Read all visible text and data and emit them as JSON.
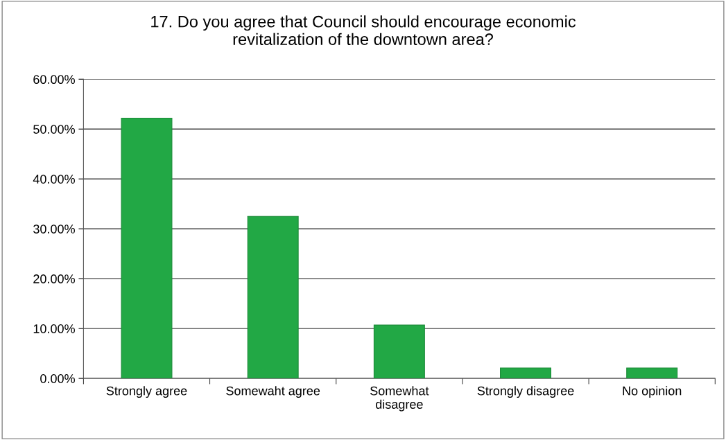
{
  "chart_data": {
    "type": "bar",
    "title": "17. Do you agree that Council should encourage economic\nrevitalization of the downtown area?",
    "categories": [
      "Strongly agree",
      "Somewaht agree",
      "Somewhat\ndisagree",
      "Strongly disagree",
      "No opinion"
    ],
    "values": [
      52.2,
      32.5,
      10.7,
      2.1,
      2.1
    ],
    "color": "#22a845",
    "ylim": [
      0,
      60
    ],
    "yticks": [
      {
        "value": 0,
        "label": "0.00%"
      },
      {
        "value": 10,
        "label": "10.00%"
      },
      {
        "value": 20,
        "label": "20.00%"
      },
      {
        "value": 30,
        "label": "30.00%"
      },
      {
        "value": 40,
        "label": "40.00%"
      },
      {
        "value": 50,
        "label": "50.00%"
      },
      {
        "value": 60,
        "label": "60.00%"
      }
    ],
    "grid": "y"
  }
}
